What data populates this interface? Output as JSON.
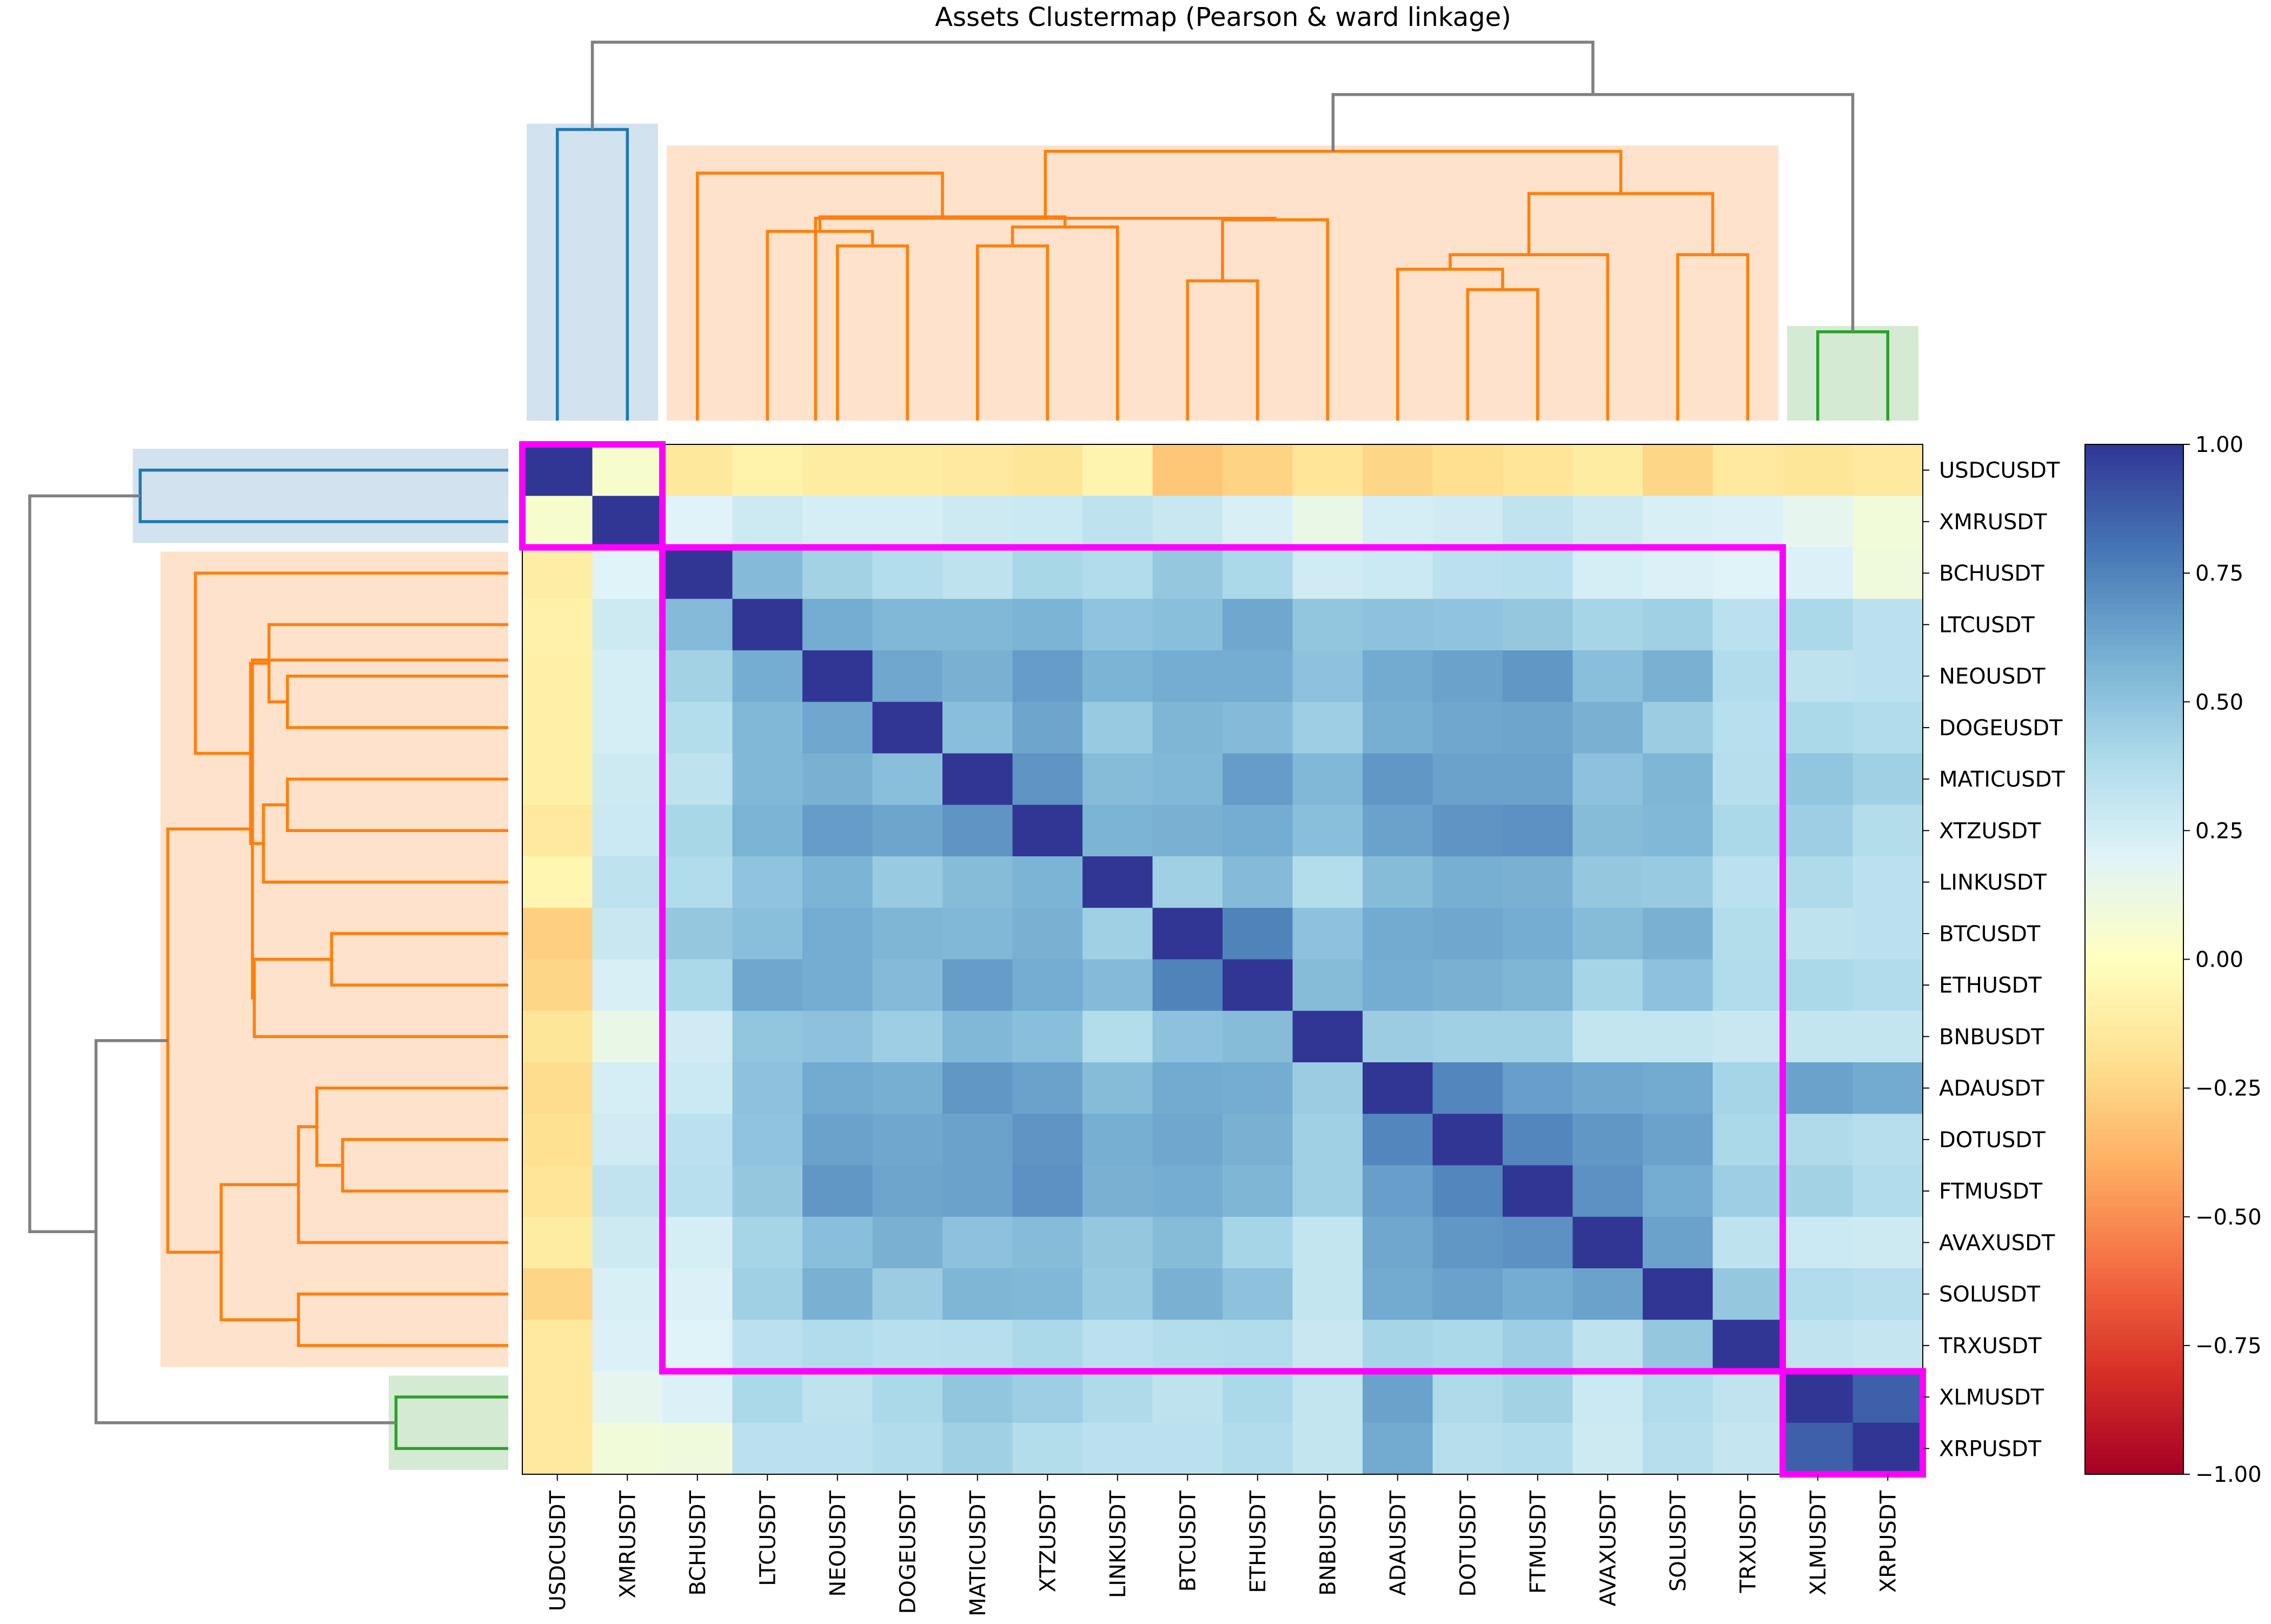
{
  "chart_data": {
    "type": "heatmap",
    "title": "Assets Clustermap (Pearson & ward linkage)",
    "labels": [
      "USDCUSDT",
      "XMRUSDT",
      "BCHUSDT",
      "LTCUSDT",
      "NEOUSDT",
      "DOGEUSDT",
      "MATICUSDT",
      "XTZUSDT",
      "LINKUSDT",
      "BTCUSDT",
      "ETHUSDT",
      "BNBUSDT",
      "ADAUSDT",
      "DOTUSDT",
      "FTMUSDT",
      "AVAXUSDT",
      "SOLUSDT",
      "TRXUSDT",
      "XLMUSDT",
      "XRPUSDT"
    ],
    "values": [
      [
        1.0,
        0.05,
        -0.15,
        -0.08,
        -0.12,
        -0.12,
        -0.14,
        -0.16,
        -0.07,
        -0.3,
        -0.25,
        -0.17,
        -0.24,
        -0.2,
        -0.17,
        -0.12,
        -0.24,
        -0.14,
        -0.16,
        -0.14
      ],
      [
        0.05,
        1.0,
        0.2,
        0.27,
        0.24,
        0.24,
        0.27,
        0.28,
        0.33,
        0.29,
        0.23,
        0.14,
        0.24,
        0.26,
        0.32,
        0.27,
        0.23,
        0.22,
        0.16,
        0.09
      ],
      [
        -0.11,
        0.2,
        1.0,
        0.54,
        0.43,
        0.37,
        0.33,
        0.41,
        0.38,
        0.48,
        0.4,
        0.26,
        0.28,
        0.34,
        0.35,
        0.24,
        0.22,
        0.2,
        0.22,
        0.1
      ],
      [
        -0.09,
        0.27,
        0.54,
        1.0,
        0.6,
        0.55,
        0.55,
        0.57,
        0.5,
        0.52,
        0.62,
        0.49,
        0.51,
        0.5,
        0.48,
        0.42,
        0.44,
        0.34,
        0.4,
        0.34
      ],
      [
        -0.1,
        0.24,
        0.43,
        0.6,
        1.0,
        0.62,
        0.58,
        0.66,
        0.57,
        0.6,
        0.6,
        0.51,
        0.61,
        0.64,
        0.68,
        0.52,
        0.58,
        0.38,
        0.33,
        0.34
      ],
      [
        -0.1,
        0.24,
        0.37,
        0.55,
        0.62,
        1.0,
        0.52,
        0.63,
        0.47,
        0.56,
        0.54,
        0.45,
        0.59,
        0.62,
        0.63,
        0.58,
        0.46,
        0.35,
        0.4,
        0.38
      ],
      [
        -0.1,
        0.27,
        0.33,
        0.55,
        0.58,
        0.52,
        1.0,
        0.69,
        0.53,
        0.55,
        0.66,
        0.55,
        0.68,
        0.64,
        0.64,
        0.51,
        0.56,
        0.36,
        0.49,
        0.44
      ],
      [
        -0.14,
        0.28,
        0.41,
        0.57,
        0.66,
        0.63,
        0.69,
        1.0,
        0.57,
        0.58,
        0.6,
        0.52,
        0.64,
        0.69,
        0.7,
        0.53,
        0.55,
        0.4,
        0.45,
        0.37
      ],
      [
        -0.06,
        0.33,
        0.38,
        0.5,
        0.57,
        0.47,
        0.53,
        0.57,
        1.0,
        0.44,
        0.54,
        0.37,
        0.53,
        0.59,
        0.58,
        0.48,
        0.47,
        0.34,
        0.39,
        0.34
      ],
      [
        -0.27,
        0.29,
        0.48,
        0.52,
        0.6,
        0.56,
        0.55,
        0.58,
        0.44,
        1.0,
        0.75,
        0.51,
        0.61,
        0.62,
        0.6,
        0.53,
        0.58,
        0.37,
        0.33,
        0.34
      ],
      [
        -0.24,
        0.23,
        0.4,
        0.62,
        0.6,
        0.54,
        0.66,
        0.6,
        0.54,
        0.75,
        1.0,
        0.53,
        0.6,
        0.58,
        0.56,
        0.42,
        0.51,
        0.38,
        0.4,
        0.38
      ],
      [
        -0.16,
        0.14,
        0.26,
        0.49,
        0.51,
        0.45,
        0.55,
        0.52,
        0.37,
        0.51,
        0.53,
        1.0,
        0.46,
        0.44,
        0.44,
        0.31,
        0.31,
        0.29,
        0.31,
        0.31
      ],
      [
        -0.21,
        0.24,
        0.28,
        0.51,
        0.61,
        0.59,
        0.68,
        0.64,
        0.53,
        0.61,
        0.6,
        0.46,
        1.0,
        0.74,
        0.65,
        0.62,
        0.61,
        0.42,
        0.64,
        0.61
      ],
      [
        -0.19,
        0.26,
        0.34,
        0.5,
        0.64,
        0.62,
        0.64,
        0.69,
        0.59,
        0.62,
        0.58,
        0.44,
        0.74,
        1.0,
        0.74,
        0.68,
        0.64,
        0.4,
        0.39,
        0.36
      ],
      [
        -0.17,
        0.32,
        0.35,
        0.48,
        0.68,
        0.63,
        0.64,
        0.7,
        0.58,
        0.6,
        0.56,
        0.44,
        0.65,
        0.74,
        1.0,
        0.7,
        0.6,
        0.45,
        0.43,
        0.38
      ],
      [
        -0.12,
        0.27,
        0.24,
        0.42,
        0.52,
        0.58,
        0.51,
        0.53,
        0.48,
        0.53,
        0.42,
        0.31,
        0.62,
        0.68,
        0.7,
        1.0,
        0.64,
        0.33,
        0.28,
        0.27
      ],
      [
        -0.24,
        0.23,
        0.22,
        0.44,
        0.58,
        0.46,
        0.56,
        0.55,
        0.47,
        0.58,
        0.51,
        0.31,
        0.61,
        0.64,
        0.6,
        0.64,
        1.0,
        0.48,
        0.38,
        0.36
      ],
      [
        -0.14,
        0.22,
        0.2,
        0.34,
        0.38,
        0.35,
        0.36,
        0.4,
        0.34,
        0.37,
        0.38,
        0.29,
        0.42,
        0.4,
        0.45,
        0.33,
        0.48,
        1.0,
        0.32,
        0.3
      ],
      [
        -0.14,
        0.16,
        0.22,
        0.4,
        0.33,
        0.4,
        0.49,
        0.45,
        0.39,
        0.33,
        0.4,
        0.31,
        0.64,
        0.39,
        0.43,
        0.28,
        0.38,
        0.32,
        1.0,
        0.87
      ],
      [
        -0.14,
        0.09,
        0.1,
        0.34,
        0.34,
        0.38,
        0.44,
        0.37,
        0.34,
        0.34,
        0.38,
        0.31,
        0.61,
        0.36,
        0.38,
        0.27,
        0.36,
        0.3,
        0.87,
        1.0
      ]
    ],
    "colorbar": {
      "vmin": -1.0,
      "vmax": 1.0,
      "ticks": [
        1.0,
        0.75,
        0.5,
        0.25,
        0.0,
        -0.25,
        -0.5,
        -0.75,
        -1.0
      ],
      "tick_labels": [
        "1.00",
        "0.75",
        "0.50",
        "0.25",
        "0.00",
        "−0.25",
        "−0.50",
        "−0.75",
        "−1.00"
      ],
      "colormap": "RdYlBu"
    },
    "clusters": [
      {
        "start": 0,
        "end": 1,
        "dendrogram_color": "#1f77b4",
        "shade_color": "#d2e2ee"
      },
      {
        "start": 2,
        "end": 17,
        "dendrogram_color": "#ff7f0e",
        "shade_color": "#fee2cc"
      },
      {
        "start": 18,
        "end": 19,
        "dendrogram_color": "#2ca02c",
        "shade_color": "#d4ead3"
      }
    ],
    "highlight_color": "#ff00ff",
    "link_color": "#808080",
    "dendrogram_links": [
      {
        "a": 0,
        "b": 1,
        "h": 1.0,
        "cluster": 0
      },
      {
        "a": 4,
        "b": 5,
        "h": 0.6,
        "cluster": 1
      },
      {
        "a": 3,
        "b": 4.5,
        "h": 0.65,
        "cluster": 1
      },
      {
        "a": 6,
        "b": 7,
        "h": 0.6,
        "cluster": 1
      },
      {
        "a": 6.5,
        "b": 8,
        "h": 0.665,
        "cluster": 1
      },
      {
        "a": 3.75,
        "b": 7.25,
        "h": 0.7,
        "cluster": 1
      },
      {
        "a": 2,
        "b": 5.5,
        "h": 0.85,
        "cluster": 1
      },
      {
        "a": 9,
        "b": 10,
        "h": 0.48,
        "cluster": 1
      },
      {
        "a": 9.5,
        "b": 11,
        "h": 0.69,
        "cluster": 1
      },
      {
        "a": 13,
        "b": 14,
        "h": 0.45,
        "cluster": 1
      },
      {
        "a": 12,
        "b": 13.5,
        "h": 0.52,
        "cluster": 1
      },
      {
        "a": 12.75,
        "b": 15,
        "h": 0.57,
        "cluster": 1
      },
      {
        "a": 16,
        "b": 17,
        "h": 0.57,
        "cluster": 1
      },
      {
        "a": 13.875,
        "b": 16.5,
        "h": 0.78,
        "cluster": 1
      },
      {
        "a": 3.6875,
        "b": 10.25,
        "h": 0.695,
        "cluster": 1
      },
      {
        "a": 6.96875,
        "b": 15.1875,
        "h": 0.925,
        "cluster": 1
      },
      {
        "a": 18,
        "b": 19,
        "h": 0.305,
        "cluster": 2
      },
      {
        "a": 11.078125,
        "b": 18.5,
        "h": 1.12,
        "cluster": -1
      },
      {
        "a": 0.5,
        "b": 14.7890625,
        "h": 1.3,
        "cluster": -1
      }
    ]
  }
}
